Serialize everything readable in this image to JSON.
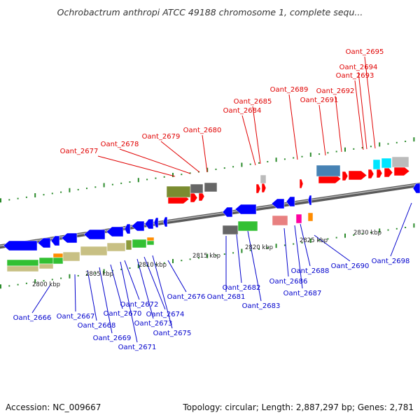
{
  "title": "Ochrobactrum anthropi ATCC 49188 chromosome 1, complete sequ...",
  "footer": {
    "accession": "Accession: NC_009667",
    "summary": "Topology: circular; Length: 2,887,297 bp; Genes: 2,781"
  },
  "scale_labels": [
    "2800 kbp",
    "2805 kbp",
    "2810 kbp",
    "2815 kbp",
    "2820 kbp",
    "2825 kbp",
    "2830 kbp"
  ],
  "colors": {
    "backbone": "#7f7f7f",
    "forward_label": "#e00000",
    "reverse_label": "#0000cc",
    "forward_gene": "#ff0000",
    "reverse_gene": "#0000ff",
    "tick": "#2a8a2a"
  },
  "forward_genes": [
    "Oant_2677",
    "Oant_2678",
    "Oant_2679",
    "Oant_2680",
    "Oant_2684",
    "Oant_2685",
    "Oant_2689",
    "Oant_2691",
    "Oant_2692",
    "Oant_2693",
    "Oant_2694",
    "Oant_2695"
  ],
  "reverse_genes": [
    "Oant_2666",
    "Oant_2667",
    "Oant_2668",
    "Oant_2669",
    "Oant_2670",
    "Oant_2671",
    "Oant_2672",
    "Oant_2673",
    "Oant_2674",
    "Oant_2675",
    "Oant_2676",
    "Oant_2681",
    "Oant_2682",
    "Oant_2683",
    "Oant_2686",
    "Oant_2687",
    "Oant_2688",
    "Oant_2690",
    "Oant_2698"
  ]
}
